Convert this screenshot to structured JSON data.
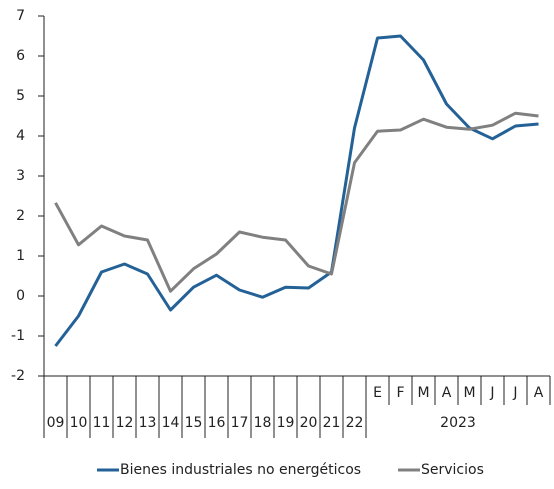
{
  "chart_data": {
    "type": "line",
    "categories": [
      "09",
      "10",
      "11",
      "12",
      "13",
      "14",
      "15",
      "16",
      "17",
      "18",
      "19",
      "20",
      "21",
      "22",
      "E",
      "F",
      "M",
      "A",
      "M",
      "J",
      "J",
      "A"
    ],
    "group_label": "2023",
    "series": [
      {
        "name": "Bienes industriales no energéticos",
        "color": "#236197",
        "values": [
          -1.25,
          -0.5,
          0.6,
          0.8,
          0.55,
          -0.35,
          0.22,
          0.52,
          0.15,
          -0.03,
          0.22,
          0.2,
          0.6,
          4.2,
          6.45,
          6.5,
          5.9,
          4.8,
          4.2,
          3.93,
          4.25,
          4.3
        ]
      },
      {
        "name": "Servicios",
        "color": "#808080",
        "values": [
          2.33,
          1.28,
          1.75,
          1.5,
          1.4,
          0.12,
          0.68,
          1.05,
          1.6,
          1.47,
          1.4,
          0.75,
          0.55,
          3.33,
          4.12,
          4.15,
          4.42,
          4.22,
          4.17,
          4.27,
          4.57,
          4.5
        ]
      }
    ],
    "ylim": [
      -2,
      7
    ],
    "yticks": [
      -2,
      -1,
      0,
      1,
      2,
      3,
      4,
      5,
      6,
      7
    ],
    "grid": false,
    "legend": "bottom"
  }
}
